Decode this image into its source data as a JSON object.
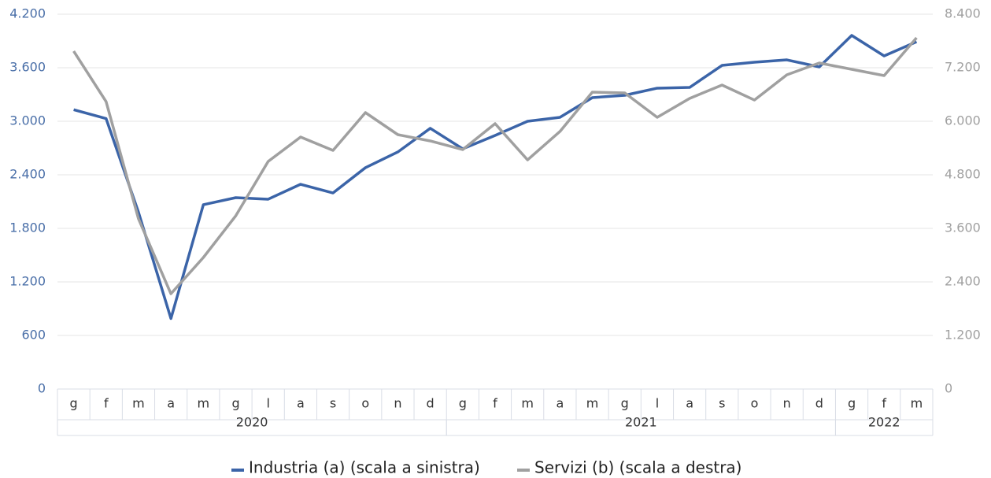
{
  "chart_data": {
    "type": "line",
    "categories": [
      "g",
      "f",
      "m",
      "a",
      "m",
      "g",
      "l",
      "a",
      "s",
      "o",
      "n",
      "d",
      "g",
      "f",
      "m",
      "a",
      "m",
      "g",
      "l",
      "a",
      "s",
      "o",
      "n",
      "d",
      "g",
      "f",
      "m"
    ],
    "category_groups": [
      {
        "label": "2020",
        "size": 12
      },
      {
        "label": "2021",
        "size": 12
      },
      {
        "label": "2022",
        "size": 3
      }
    ],
    "series": [
      {
        "name": "Industria (a) (scala a sinistra)",
        "color": "#3b64a8",
        "axis": "y",
        "values": [
          3130,
          3030,
          1980,
          790,
          2065,
          2144,
          2127,
          2294,
          2197,
          2480,
          2656,
          2921,
          2691,
          2841,
          3000,
          3044,
          3265,
          3291,
          3371,
          3379,
          3626,
          3662,
          3688,
          3609,
          3962,
          3732,
          3891
        ]
      },
      {
        "name": "Servizi (b) (scala a destra)",
        "color": "#a0a0a0",
        "axis": "y2",
        "values": [
          7571,
          6441,
          3812,
          2135,
          2947,
          3882,
          5100,
          5647,
          5347,
          6194,
          5700,
          5559,
          5365,
          5947,
          5135,
          5771,
          6653,
          6635,
          6088,
          6512,
          6812,
          6476,
          7041,
          7306,
          7165,
          7024,
          7871
        ]
      }
    ],
    "ylim": [
      0,
      4200
    ],
    "yticks": [
      0,
      {
        "value": 600,
        "label": "600"
      },
      {
        "value": 1200,
        "label": "1.200"
      },
      {
        "value": 1800,
        "label": "1.800"
      },
      {
        "value": 2400,
        "label": "2.400"
      },
      {
        "value": 3000,
        "label": "3.000"
      },
      {
        "value": 3600,
        "label": "3.600"
      },
      {
        "value": 4200,
        "label": "4.200"
      }
    ],
    "y2lim": [
      0,
      8400
    ],
    "y2ticks": [
      0,
      {
        "value": 1200,
        "label": "1.200"
      },
      {
        "value": 2400,
        "label": "2.400"
      },
      {
        "value": 3600,
        "label": "3.600"
      },
      {
        "value": 4800,
        "label": "4.800"
      },
      {
        "value": 6000,
        "label": "6.000"
      },
      {
        "value": 7200,
        "label": "7.200"
      },
      {
        "value": 8400,
        "label": "8.400"
      }
    ],
    "grid": true,
    "legend": "bottom"
  }
}
